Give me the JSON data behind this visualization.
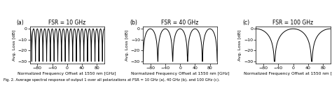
{
  "panels": [
    {
      "label": "(a)",
      "title": "FSR = 10 GHz",
      "fsr_ghz": 10,
      "xlim": [
        -100,
        100
      ],
      "ylim": [
        -32,
        2
      ],
      "yticks": [
        0,
        -10,
        -20,
        -30
      ],
      "xticks": [
        -80,
        -40,
        0,
        40,
        80
      ]
    },
    {
      "label": "(b)",
      "title": "FSR = 40 GHz",
      "fsr_ghz": 40,
      "xlim": [
        -100,
        100
      ],
      "ylim": [
        -32,
        2
      ],
      "yticks": [
        0,
        -10,
        -20,
        -30
      ],
      "xticks": [
        -80,
        -40,
        0,
        40,
        80
      ]
    },
    {
      "label": "(c)",
      "title": "FSR = 100 GHz",
      "fsr_ghz": 100,
      "xlim": [
        -100,
        100
      ],
      "ylim": [
        -32,
        2
      ],
      "yticks": [
        0,
        -10,
        -20,
        -30
      ],
      "xticks": [
        -80,
        -40,
        0,
        40,
        80
      ]
    }
  ],
  "xlabel": "Normalized Frequency Offset at 1550 nm [GHz]",
  "ylabel": "Avg. Loss [dB]",
  "line_color": "black",
  "line_width": 0.7,
  "bg_color": "white",
  "fig_width": 4.74,
  "fig_height": 1.36,
  "dpi": 100,
  "extinction_ratio_db": 30,
  "caption": "Fig. 2. Average spectral response of output 1 over all polarizations at FSR = 10 GHz (a), 40 GHz (b), and 100 GHz (c)."
}
